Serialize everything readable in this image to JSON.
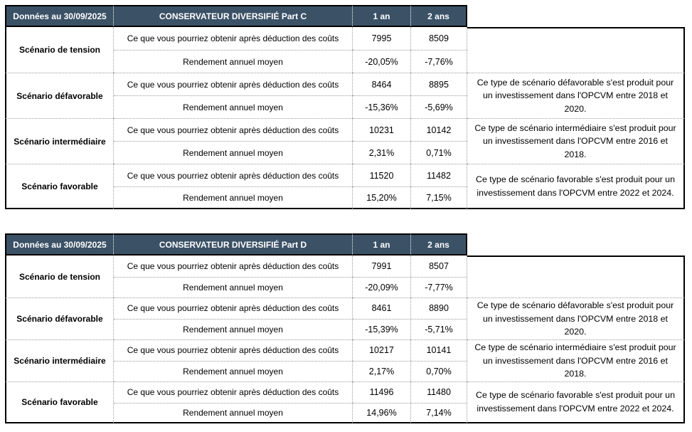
{
  "colors": {
    "header_bg": "#3b5166"
  },
  "tables": [
    {
      "date_label": "Données au 30/09/2025",
      "title": "CONSERVATEUR DIVERSIFIÉ Part C",
      "col_1y": "1 an",
      "col_2y": "2 ans",
      "metric_obtain": "Ce que vous pourriez obtenir après déduction des coûts",
      "metric_return": "Rendement annuel moyen",
      "sections": [
        {
          "label": "Scénario de tension",
          "obtain_1y": "7995",
          "obtain_2y": "8509",
          "return_1y": "-20,05%",
          "return_2y": "-7,76%",
          "note": ""
        },
        {
          "label": "Scénario défavorable",
          "obtain_1y": "8464",
          "obtain_2y": "8895",
          "return_1y": "-15,36%",
          "return_2y": "-5,69%",
          "note": "Ce type de scénario défavorable s'est produit pour un investissement dans l'OPCVM entre 2018 et 2020."
        },
        {
          "label": "Scénario intermédiaire",
          "obtain_1y": "10231",
          "obtain_2y": "10142",
          "return_1y": "2,31%",
          "return_2y": "0,71%",
          "note": "Ce type de scénario intermédiaire s'est produit pour un investissement dans l'OPCVM entre 2016 et 2018."
        },
        {
          "label": "Scénario favorable",
          "obtain_1y": "11520",
          "obtain_2y": "11482",
          "return_1y": "15,20%",
          "return_2y": "7,15%",
          "note": "Ce type de scénario favorable s'est produit pour un investissement dans l'OPCVM entre 2022 et 2024."
        }
      ]
    },
    {
      "date_label": "Données au 30/09/2025",
      "title": "CONSERVATEUR DIVERSIFIÉ Part D",
      "col_1y": "1 an",
      "col_2y": "2 ans",
      "metric_obtain": "Ce que vous pourriez obtenir après déduction des coûts",
      "metric_return": "Rendement annuel moyen",
      "sections": [
        {
          "label": "Scénario de tension",
          "obtain_1y": "7991",
          "obtain_2y": "8507",
          "return_1y": "-20,09%",
          "return_2y": "-7,77%",
          "note": ""
        },
        {
          "label": "Scénario défavorable",
          "obtain_1y": "8461",
          "obtain_2y": "8890",
          "return_1y": "-15,39%",
          "return_2y": "-5,71%",
          "note": "Ce type de scénario défavorable s'est produit pour un investissement dans l'OPCVM entre 2018 et 2020."
        },
        {
          "label": "Scénario intermédiaire",
          "obtain_1y": "10217",
          "obtain_2y": "10141",
          "return_1y": "2,17%",
          "return_2y": "0,70%",
          "note": "Ce type de scénario intermédiaire s'est produit pour un investissement dans l'OPCVM entre 2016 et 2018."
        },
        {
          "label": "Scénario favorable",
          "obtain_1y": "11496",
          "obtain_2y": "11480",
          "return_1y": "14,96%",
          "return_2y": "7,14%",
          "note": "Ce type de scénario favorable s'est produit pour un investissement dans l'OPCVM entre 2022 et 2024."
        }
      ]
    }
  ]
}
